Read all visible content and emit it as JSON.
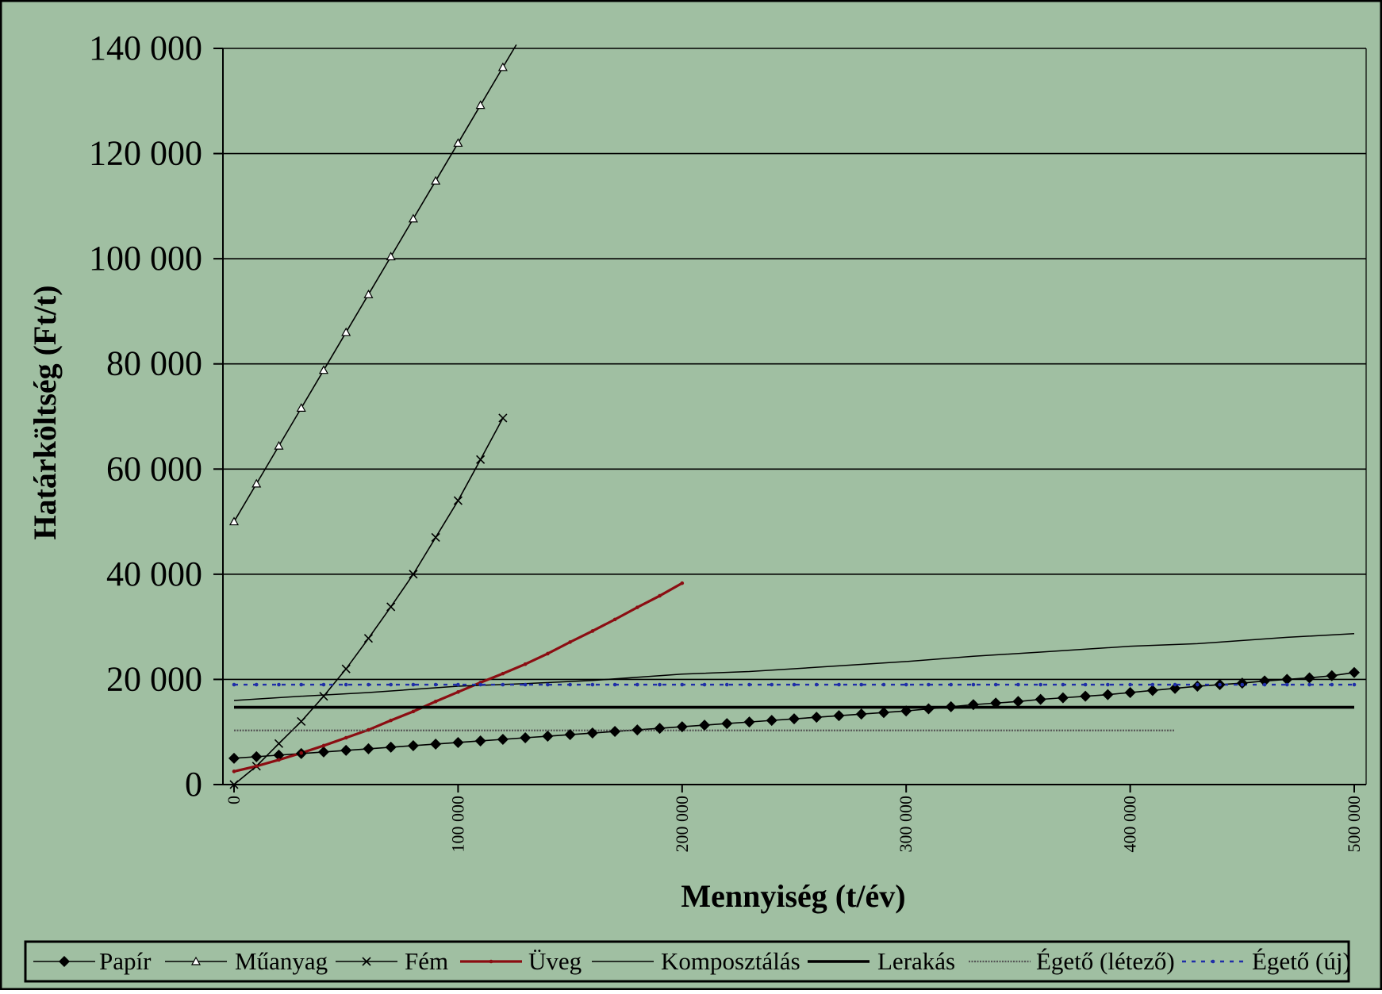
{
  "chart_data": {
    "type": "line",
    "title": "",
    "xlabel": "Mennyiség (t/év)",
    "ylabel": "Határköltség (Ft/t)",
    "xlim": [
      0,
      500000
    ],
    "ylim": [
      0,
      140000
    ],
    "x_ticks": [
      0,
      100000,
      200000,
      300000,
      400000,
      500000
    ],
    "x_tick_labels": [
      "0",
      "100 000",
      "200 000",
      "300 000",
      "400 000",
      "500 000"
    ],
    "y_ticks": [
      0,
      20000,
      40000,
      60000,
      80000,
      100000,
      120000,
      140000
    ],
    "y_tick_labels": [
      "0",
      "20 000",
      "40 000",
      "60 000",
      "80 000",
      "100 000",
      "120 000",
      "140 000"
    ],
    "grid": "horizontal",
    "legend_position": "bottom",
    "background_color": "#a0bfa2",
    "series": [
      {
        "name": "Papír",
        "color": "#000000",
        "marker": "diamond",
        "style": "solid",
        "x": [
          0,
          10000,
          20000,
          30000,
          40000,
          50000,
          60000,
          70000,
          80000,
          90000,
          100000,
          110000,
          120000,
          130000,
          140000,
          150000,
          160000,
          170000,
          180000,
          190000,
          200000,
          210000,
          220000,
          230000,
          240000,
          250000,
          260000,
          270000,
          280000,
          290000,
          300000,
          310000,
          320000,
          330000,
          340000,
          350000,
          360000,
          370000,
          380000,
          390000,
          400000,
          410000,
          420000,
          430000,
          440000,
          450000,
          460000,
          470000,
          480000,
          490000,
          500000
        ],
        "y": [
          5000,
          5300,
          5600,
          5900,
          6200,
          6500,
          6800,
          7100,
          7400,
          7700,
          8000,
          8300,
          8600,
          8900,
          9200,
          9500,
          9800,
          10100,
          10400,
          10700,
          11000,
          11300,
          11600,
          11900,
          12200,
          12500,
          12800,
          13100,
          13400,
          13700,
          14000,
          14400,
          14800,
          15200,
          15500,
          15800,
          16200,
          16500,
          16800,
          17100,
          17500,
          17900,
          18300,
          18700,
          19000,
          19300,
          19700,
          20000,
          20300,
          20700,
          21300
        ]
      },
      {
        "name": "Műanyag",
        "color": "#000000",
        "marker": "triangle",
        "style": "solid",
        "x": [
          0,
          10000,
          20000,
          30000,
          40000,
          50000,
          60000,
          70000,
          80000,
          90000,
          100000,
          110000,
          120000,
          126000
        ],
        "y": [
          50000,
          57200,
          64400,
          71600,
          78800,
          86000,
          93200,
          100400,
          107600,
          114800,
          122000,
          129200,
          136400,
          140700
        ]
      },
      {
        "name": "Fém",
        "color": "#000000",
        "marker": "x",
        "style": "solid",
        "x": [
          0,
          10000,
          20000,
          30000,
          40000,
          50000,
          60000,
          70000,
          80000,
          90000,
          100000,
          110000,
          120000
        ],
        "y": [
          0,
          3500,
          7800,
          12000,
          16800,
          22000,
          27800,
          33800,
          40000,
          47000,
          54000,
          61800,
          69700
        ]
      },
      {
        "name": "Üveg",
        "color": "#8b0d12",
        "marker": "dot",
        "style": "solid",
        "x": [
          0,
          10000,
          20000,
          30000,
          40000,
          50000,
          60000,
          70000,
          80000,
          90000,
          100000,
          110000,
          120000,
          130000,
          140000,
          150000,
          160000,
          170000,
          180000,
          190000,
          200000
        ],
        "y": [
          2500,
          3500,
          4700,
          6000,
          7400,
          8900,
          10400,
          12200,
          13900,
          15800,
          17600,
          19400,
          21100,
          22900,
          24900,
          27100,
          29200,
          31400,
          33700,
          35900,
          38300
        ]
      },
      {
        "name": "Komposztálás",
        "color": "#000000",
        "marker": "none",
        "style": "thin",
        "x": [
          0,
          30000,
          60000,
          100000,
          130000,
          160000,
          200000,
          230000,
          260000,
          300000,
          330000,
          360000,
          400000,
          430000,
          470000,
          500000
        ],
        "y": [
          16000,
          16800,
          17500,
          18700,
          19200,
          19800,
          21000,
          21500,
          22300,
          23400,
          24400,
          25200,
          26300,
          26800,
          28000,
          28700
        ]
      },
      {
        "name": "Lerakás",
        "color": "#000000",
        "marker": "none",
        "style": "thick",
        "x": [
          0,
          500000
        ],
        "y": [
          14700,
          14700
        ]
      },
      {
        "name": "Égető (létező)",
        "color": "#555555",
        "marker": "none",
        "style": "dotted-gray",
        "x": [
          0,
          420000
        ],
        "y": [
          10300,
          10300
        ]
      },
      {
        "name": "Égető (új)",
        "color": "#1f2ea8",
        "marker": "dot",
        "style": "dotted-blue",
        "x": [
          0,
          500000
        ],
        "y": [
          19000,
          19000
        ]
      }
    ]
  }
}
